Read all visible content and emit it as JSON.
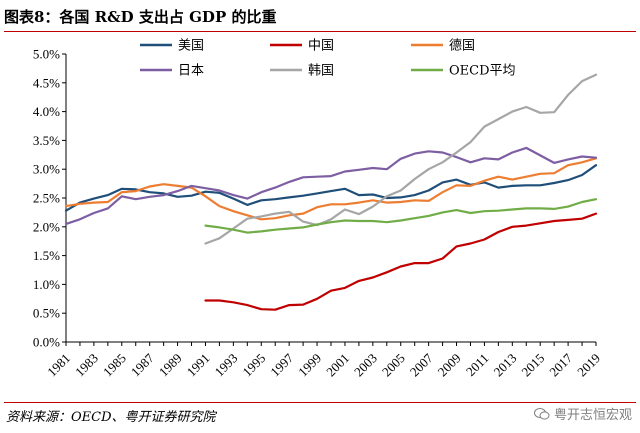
{
  "title": "图表8：各国 R&D 支出占 GDP 的比重",
  "source": "资料来源：OECD、粤开证券研究院",
  "watermark": "粤开志恒宏观",
  "chart_data": {
    "type": "line",
    "title": "",
    "xlabel": "",
    "ylabel": "",
    "ylim": [
      0,
      5
    ],
    "y_ticks": [
      "0.0%",
      "0.5%",
      "1.0%",
      "1.5%",
      "2.0%",
      "2.5%",
      "3.0%",
      "3.5%",
      "4.0%",
      "4.5%",
      "5.0%"
    ],
    "x_ticks": [
      "1981",
      "1983",
      "1985",
      "1987",
      "1989",
      "1991",
      "1993",
      "1995",
      "1997",
      "1999",
      "2001",
      "2003",
      "2005",
      "2007",
      "2009",
      "2011",
      "2013",
      "2015",
      "2017",
      "2019"
    ],
    "grid": false,
    "legend": "top",
    "series": [
      {
        "name": "美国",
        "color": "#1f4e79",
        "start": 1981,
        "values": [
          2.28,
          2.42,
          2.49,
          2.55,
          2.66,
          2.65,
          2.6,
          2.58,
          2.52,
          2.54,
          2.61,
          2.59,
          2.49,
          2.38,
          2.46,
          2.48,
          2.51,
          2.54,
          2.58,
          2.62,
          2.66,
          2.55,
          2.56,
          2.5,
          2.51,
          2.55,
          2.63,
          2.77,
          2.82,
          2.73,
          2.77,
          2.68,
          2.71,
          2.72,
          2.72,
          2.76,
          2.81,
          2.9,
          3.07
        ]
      },
      {
        "name": "中国",
        "color": "#c00000",
        "start": 1991,
        "values": [
          0.72,
          0.72,
          0.69,
          0.64,
          0.57,
          0.56,
          0.64,
          0.65,
          0.75,
          0.89,
          0.94,
          1.06,
          1.12,
          1.21,
          1.31,
          1.37,
          1.37,
          1.45,
          1.66,
          1.71,
          1.78,
          1.91,
          2.0,
          2.02,
          2.06,
          2.1,
          2.12,
          2.14,
          2.23
        ]
      },
      {
        "name": "德国",
        "color": "#ed7d31",
        "start": 1981,
        "values": [
          2.36,
          2.4,
          2.42,
          2.43,
          2.6,
          2.62,
          2.7,
          2.74,
          2.71,
          2.68,
          2.53,
          2.36,
          2.27,
          2.2,
          2.13,
          2.15,
          2.2,
          2.23,
          2.34,
          2.39,
          2.39,
          2.42,
          2.46,
          2.42,
          2.43,
          2.46,
          2.45,
          2.6,
          2.72,
          2.71,
          2.8,
          2.87,
          2.82,
          2.87,
          2.92,
          2.93,
          3.07,
          3.12,
          3.19
        ]
      },
      {
        "name": "日本",
        "color": "#7e5ea3",
        "start": 1981,
        "values": [
          2.05,
          2.13,
          2.24,
          2.32,
          2.53,
          2.48,
          2.52,
          2.55,
          2.62,
          2.71,
          2.67,
          2.63,
          2.55,
          2.49,
          2.6,
          2.68,
          2.78,
          2.86,
          2.87,
          2.88,
          2.96,
          2.99,
          3.02,
          3.0,
          3.18,
          3.27,
          3.31,
          3.29,
          3.21,
          3.12,
          3.19,
          3.17,
          3.29,
          3.37,
          3.24,
          3.11,
          3.17,
          3.22,
          3.2
        ]
      },
      {
        "name": "韩国",
        "color": "#a6a6a6",
        "start": 1991,
        "values": [
          1.71,
          1.8,
          1.97,
          2.14,
          2.18,
          2.23,
          2.26,
          2.09,
          2.03,
          2.13,
          2.3,
          2.22,
          2.35,
          2.53,
          2.63,
          2.83,
          3.0,
          3.12,
          3.29,
          3.47,
          3.74,
          3.87,
          4.0,
          4.08,
          3.98,
          3.99,
          4.29,
          4.53,
          4.64
        ]
      },
      {
        "name": "OECD平均",
        "color": "#70ad47",
        "start": 1991,
        "values": [
          2.02,
          1.99,
          1.95,
          1.9,
          1.92,
          1.95,
          1.97,
          1.99,
          2.04,
          2.08,
          2.11,
          2.1,
          2.1,
          2.08,
          2.11,
          2.15,
          2.19,
          2.25,
          2.29,
          2.24,
          2.27,
          2.28,
          2.3,
          2.32,
          2.32,
          2.31,
          2.35,
          2.43,
          2.48
        ]
      }
    ]
  }
}
